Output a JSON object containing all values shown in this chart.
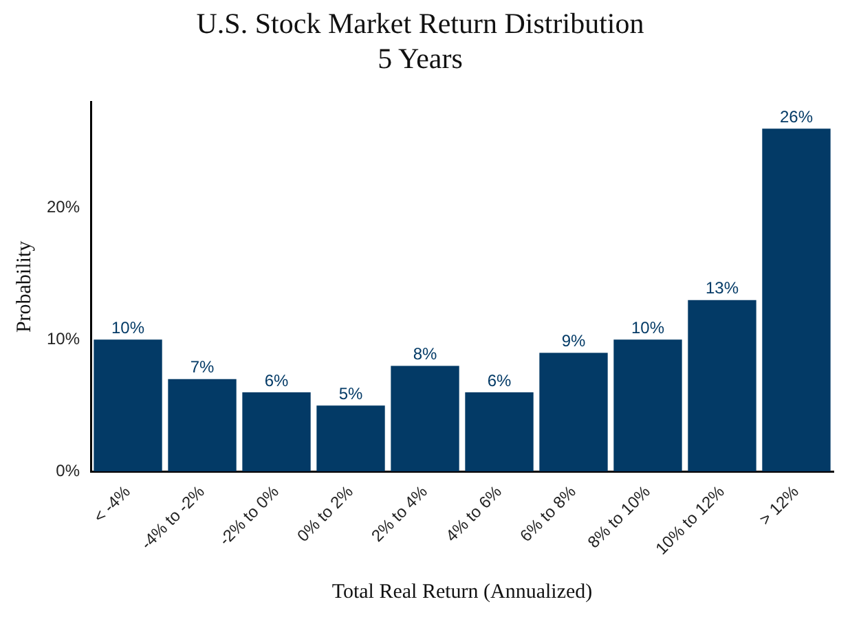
{
  "chart_data": {
    "type": "bar",
    "title": "U.S. Stock Market Return Distribution",
    "subtitle": "5 Years",
    "xlabel": "Total Real Return (Annualized)",
    "ylabel": "Probability",
    "categories": [
      "< -4%",
      "-4% to -2%",
      "-2% to 0%",
      "0% to 2%",
      "2% to 4%",
      "4% to 6%",
      "6% to 8%",
      "8% to 10%",
      "10% to 12%",
      "> 12%"
    ],
    "values": [
      10,
      7,
      6,
      5,
      8,
      6,
      9,
      10,
      13,
      26
    ],
    "value_labels": [
      "10%",
      "7%",
      "6%",
      "5%",
      "8%",
      "6%",
      "9%",
      "10%",
      "13%",
      "26%"
    ],
    "color": "#033a66",
    "ylim": [
      0,
      28
    ],
    "yticks": [
      {
        "value": 0,
        "label": "0%"
      },
      {
        "value": 10,
        "label": "10%"
      },
      {
        "value": 20,
        "label": "20%"
      }
    ],
    "grid": false,
    "legend": false
  }
}
